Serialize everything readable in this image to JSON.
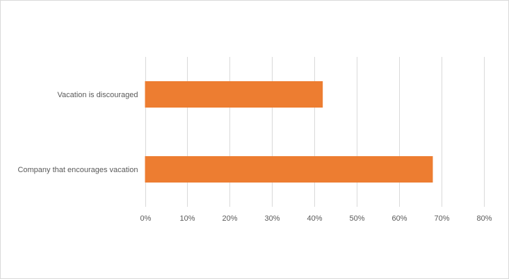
{
  "chart_data": {
    "type": "bar",
    "orientation": "horizontal",
    "categories": [
      "Vacation is discouraged",
      "Company that encourages vacation"
    ],
    "series": [
      {
        "values": [
          0.42,
          0.68
        ]
      }
    ],
    "xlim": [
      0,
      0.8
    ],
    "xticks": [
      0,
      0.1,
      0.2,
      0.3,
      0.4,
      0.5,
      0.6,
      0.7,
      0.8
    ],
    "xtick_labels": [
      "0%",
      "10%",
      "20%",
      "30%",
      "40%",
      "50%",
      "60%",
      "70%",
      "80%"
    ],
    "grid": true,
    "legend": "none",
    "bar_color": "#ED7D31",
    "grid_color": "#D9D9D9",
    "text_color": "#595959"
  }
}
